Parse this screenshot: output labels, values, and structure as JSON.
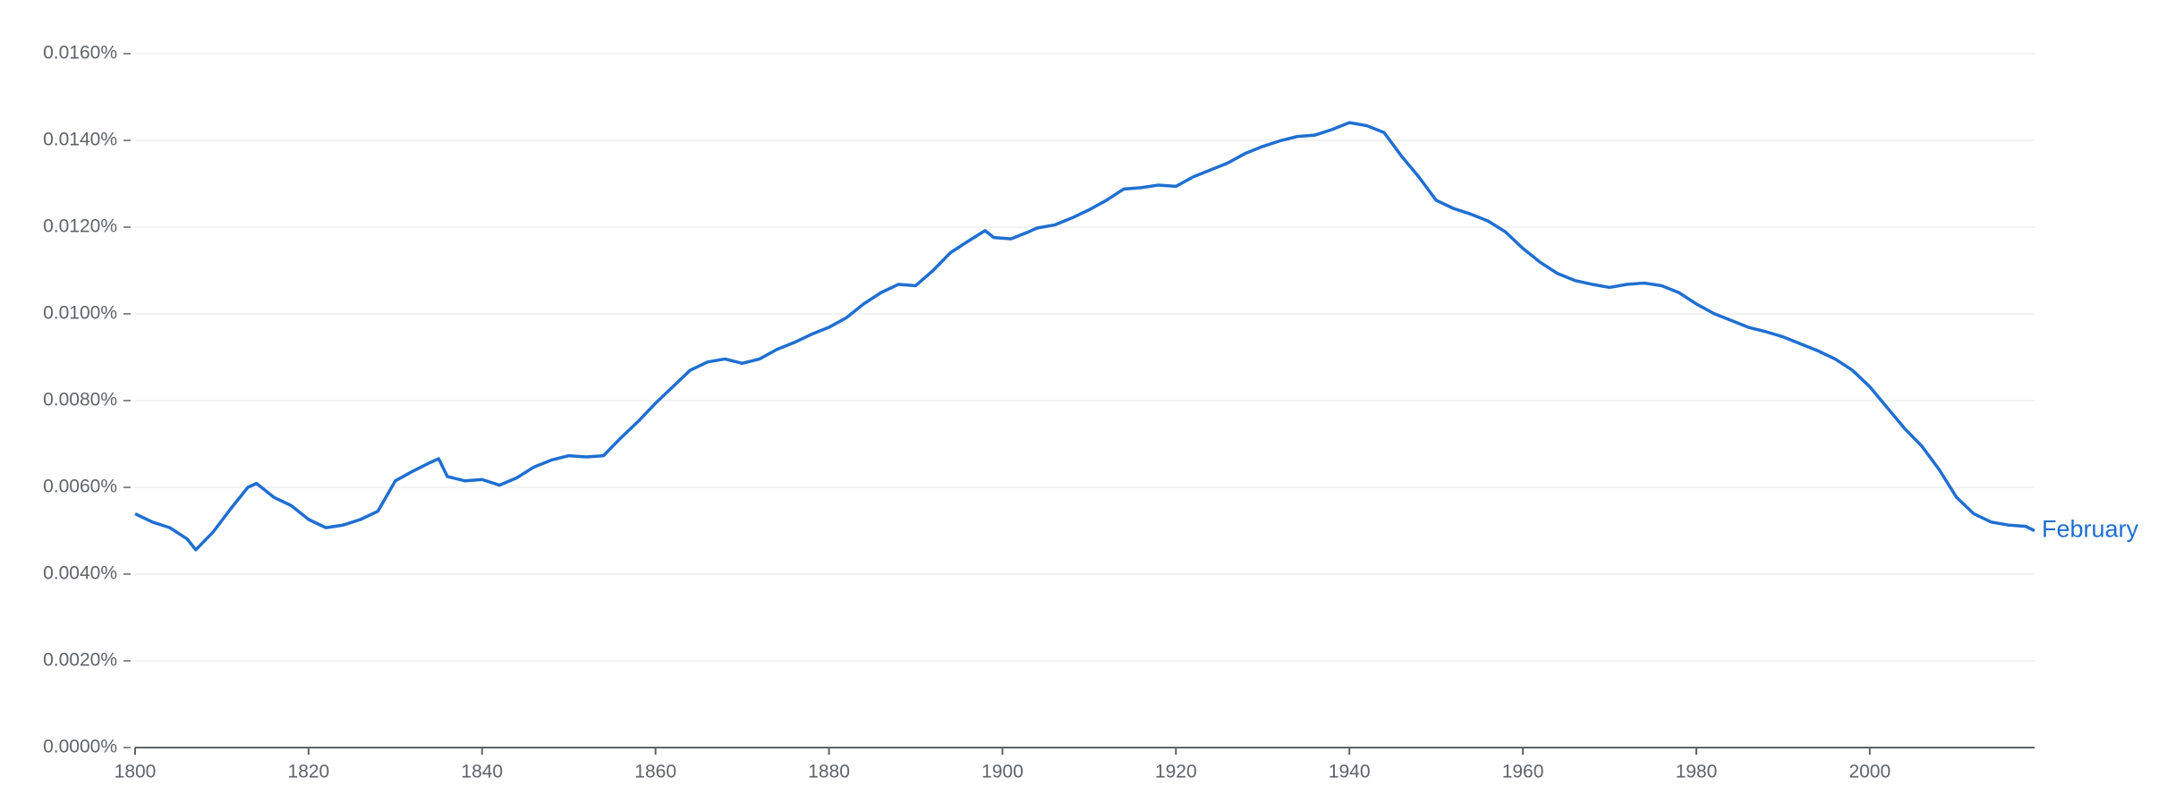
{
  "chart_data": {
    "type": "line",
    "x": [
      1800,
      1802,
      1804,
      1806,
      1807,
      1809,
      1811,
      1813,
      1814,
      1816,
      1818,
      1820,
      1822,
      1824,
      1826,
      1828,
      1830,
      1832,
      1834,
      1835,
      1836,
      1838,
      1840,
      1842,
      1844,
      1846,
      1848,
      1850,
      1852,
      1854,
      1856,
      1858,
      1860,
      1862,
      1864,
      1866,
      1868,
      1870,
      1872,
      1874,
      1876,
      1878,
      1880,
      1882,
      1884,
      1886,
      1888,
      1890,
      1892,
      1894,
      1896,
      1898,
      1899,
      1901,
      1903,
      1904,
      1906,
      1908,
      1910,
      1912,
      1914,
      1916,
      1918,
      1920,
      1922,
      1924,
      1926,
      1928,
      1930,
      1932,
      1934,
      1936,
      1938,
      1940,
      1942,
      1944,
      1946,
      1948,
      1950,
      1952,
      1954,
      1956,
      1958,
      1960,
      1962,
      1964,
      1966,
      1968,
      1970,
      1972,
      1974,
      1976,
      1978,
      1980,
      1982,
      1984,
      1986,
      1988,
      1990,
      1992,
      1994,
      1996,
      1998,
      2000,
      2002,
      2004,
      2006,
      2008,
      2010,
      2012,
      2014,
      2016,
      2018,
      2019
    ],
    "series": [
      {
        "name": "February",
        "color": "#1f6fd1",
        "values": [
          0.00539,
          0.0052,
          0.00507,
          0.00481,
          0.00456,
          0.00497,
          0.0055,
          0.006,
          0.00609,
          0.00577,
          0.00558,
          0.00526,
          0.00507,
          0.00513,
          0.00526,
          0.00545,
          0.00615,
          0.00637,
          0.00657,
          0.00666,
          0.00625,
          0.00615,
          0.00618,
          0.00605,
          0.00622,
          0.00647,
          0.00663,
          0.00673,
          0.0067,
          0.00673,
          0.00714,
          0.00752,
          0.00794,
          0.00832,
          0.0087,
          0.00889,
          0.00896,
          0.00886,
          0.00896,
          0.00918,
          0.00934,
          0.00953,
          0.00969,
          0.00991,
          0.01023,
          0.01049,
          0.01068,
          0.01065,
          0.011,
          0.01141,
          0.01167,
          0.01192,
          0.01176,
          0.01173,
          0.01189,
          0.01198,
          0.01205,
          0.01221,
          0.0124,
          0.01262,
          0.01288,
          0.01291,
          0.01297,
          0.01294,
          0.01316,
          0.01332,
          0.01348,
          0.0137,
          0.01386,
          0.01399,
          0.01409,
          0.01412,
          0.01425,
          0.01441,
          0.01434,
          0.01418,
          0.01364,
          0.01316,
          0.01262,
          0.01243,
          0.0123,
          0.01214,
          0.01189,
          0.01151,
          0.01119,
          0.01093,
          0.01077,
          0.01068,
          0.01061,
          0.01068,
          0.01071,
          0.01065,
          0.01049,
          0.01023,
          0.01001,
          0.00985,
          0.00969,
          0.00959,
          0.00947,
          0.00931,
          0.00915,
          0.00896,
          0.0087,
          0.00832,
          0.00784,
          0.00736,
          0.00695,
          0.00641,
          0.00577,
          0.00539,
          0.0052,
          0.00513,
          0.0051,
          0.005
        ]
      }
    ],
    "xlim": [
      1800,
      2019
    ],
    "xticks": [
      1800,
      1820,
      1840,
      1860,
      1880,
      1900,
      1920,
      1940,
      1960,
      1980,
      2000
    ],
    "ylim": [
      0,
      0.016
    ],
    "yticks": [
      {
        "value": 0,
        "label": "0.0000%"
      },
      {
        "value": 0.002,
        "label": "0.0020%"
      },
      {
        "value": 0.004,
        "label": "0.0040%"
      },
      {
        "value": 0.006,
        "label": "0.0060%"
      },
      {
        "value": 0.008,
        "label": "0.0080%"
      },
      {
        "value": 0.01,
        "label": "0.0100%"
      },
      {
        "value": 0.012,
        "label": "0.0120%"
      },
      {
        "value": 0.014,
        "label": "0.0140%"
      },
      {
        "value": 0.016,
        "label": "0.0160%"
      }
    ],
    "grid": true
  }
}
